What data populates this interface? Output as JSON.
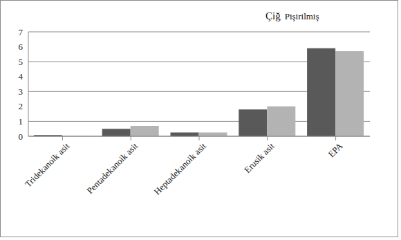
{
  "chart_data": {
    "type": "bar",
    "categories": [
      "Tridekanoik asit",
      "Pentadekanoik asit",
      "Heptadekanoik asit",
      "Erusik asit",
      "EPA"
    ],
    "series": [
      {
        "name": "Çiğ",
        "color": "#595959",
        "values": [
          0.08,
          0.5,
          0.25,
          1.8,
          5.9
        ]
      },
      {
        "name": "Pişirilmiş",
        "color": "#b3b3b3",
        "values": [
          0.02,
          0.7,
          0.25,
          2.0,
          5.7
        ]
      }
    ],
    "ylim": [
      0,
      7
    ],
    "yticks": [
      0,
      1,
      2,
      3,
      4,
      5,
      6,
      7
    ],
    "grid": true,
    "legend": "top-right"
  }
}
